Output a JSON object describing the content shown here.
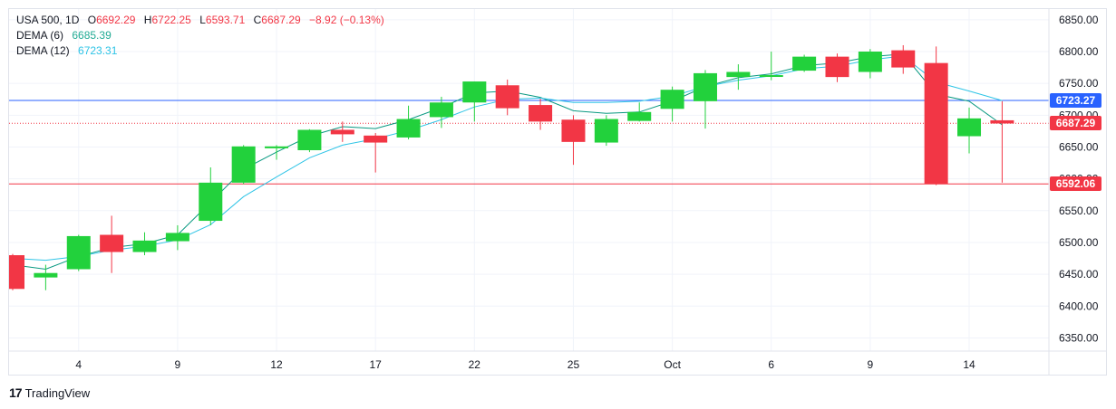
{
  "legend": {
    "symbol": "USA 500, 1D",
    "o_label": "O",
    "o_value": "6692.29",
    "h_label": "H",
    "h_value": "6722.25",
    "l_label": "L",
    "l_value": "6593.71",
    "c_label": "C",
    "c_value": "6687.29",
    "change": "−8.92 (−0.13%)",
    "dema6_label": "DEMA (6)",
    "dema6_value": "6685.39",
    "dema12_label": "DEMA (12)",
    "dema12_value": "6723.31"
  },
  "price_tags": {
    "dema12": "6723.27",
    "close": "6687.29",
    "low": "6592.06"
  },
  "brand": {
    "logo": "17",
    "name": "TradingView"
  },
  "colors": {
    "up": "#22d13c",
    "down": "#f23645",
    "dema6": "#089981",
    "dema12": "#2ec4e6",
    "dema_line": "#2962ff",
    "low_line": "#f23645",
    "grid": "#f0f3fa"
  },
  "chart_data": {
    "type": "candlestick",
    "title": "USA 500, 1D",
    "xlabel": "",
    "ylabel": "",
    "ylim": [
      6300,
      6860
    ],
    "y_ticks": [
      6350,
      6400,
      6450,
      6500,
      6550,
      6600,
      6650,
      6700,
      6750,
      6800,
      6850
    ],
    "x_ticks": [
      {
        "idx": 2,
        "label": "4"
      },
      {
        "idx": 5,
        "label": "9"
      },
      {
        "idx": 8,
        "label": "12"
      },
      {
        "idx": 11,
        "label": "17"
      },
      {
        "idx": 14,
        "label": "22"
      },
      {
        "idx": 17,
        "label": "25"
      },
      {
        "idx": 20,
        "label": "Oct"
      },
      {
        "idx": 23,
        "label": "6"
      },
      {
        "idx": 26,
        "label": "9"
      },
      {
        "idx": 29,
        "label": "14"
      }
    ],
    "candles": [
      {
        "o": 6480,
        "h": 6482,
        "l": 6425,
        "c": 6427
      },
      {
        "o": 6445,
        "h": 6465,
        "l": 6425,
        "c": 6452
      },
      {
        "o": 6458,
        "h": 6512,
        "l": 6455,
        "c": 6510
      },
      {
        "o": 6512,
        "h": 6542,
        "l": 6452,
        "c": 6485
      },
      {
        "o": 6485,
        "h": 6516,
        "l": 6480,
        "c": 6503
      },
      {
        "o": 6502,
        "h": 6527,
        "l": 6488,
        "c": 6515
      },
      {
        "o": 6534,
        "h": 6618,
        "l": 6527,
        "c": 6594
      },
      {
        "o": 6594,
        "h": 6653,
        "l": 6592,
        "c": 6651
      },
      {
        "o": 6648,
        "h": 6653,
        "l": 6630,
        "c": 6651
      },
      {
        "o": 6645,
        "h": 6678,
        "l": 6642,
        "c": 6677
      },
      {
        "o": 6677,
        "h": 6690,
        "l": 6658,
        "c": 6670
      },
      {
        "o": 6668,
        "h": 6672,
        "l": 6610,
        "c": 6657
      },
      {
        "o": 6665,
        "h": 6715,
        "l": 6662,
        "c": 6694
      },
      {
        "o": 6697,
        "h": 6729,
        "l": 6680,
        "c": 6720
      },
      {
        "o": 6720,
        "h": 6753,
        "l": 6690,
        "c": 6753
      },
      {
        "o": 6747,
        "h": 6756,
        "l": 6700,
        "c": 6711
      },
      {
        "o": 6716,
        "h": 6726,
        "l": 6677,
        "c": 6690
      },
      {
        "o": 6693,
        "h": 6700,
        "l": 6622,
        "c": 6658
      },
      {
        "o": 6657,
        "h": 6700,
        "l": 6652,
        "c": 6694
      },
      {
        "o": 6691,
        "h": 6720,
        "l": 6690,
        "c": 6705
      },
      {
        "o": 6710,
        "h": 6745,
        "l": 6690,
        "c": 6740
      },
      {
        "o": 6722,
        "h": 6771,
        "l": 6679,
        "c": 6766
      },
      {
        "o": 6760,
        "h": 6780,
        "l": 6740,
        "c": 6768
      },
      {
        "o": 6762,
        "h": 6800,
        "l": 6755,
        "c": 6763
      },
      {
        "o": 6770,
        "h": 6795,
        "l": 6768,
        "c": 6792
      },
      {
        "o": 6792,
        "h": 6797,
        "l": 6752,
        "c": 6760
      },
      {
        "o": 6768,
        "h": 6804,
        "l": 6758,
        "c": 6800
      },
      {
        "o": 6802,
        "h": 6810,
        "l": 6765,
        "c": 6775
      },
      {
        "o": 6782,
        "h": 6808,
        "l": 6590,
        "c": 6592
      },
      {
        "o": 6667,
        "h": 6712,
        "l": 6640,
        "c": 6695
      },
      {
        "o": 6692,
        "h": 6722,
        "l": 6594,
        "c": 6687
      }
    ],
    "series": [
      {
        "name": "DEMA (6)",
        "values": [
          6465,
          6458,
          6478,
          6492,
          6498,
          6512,
          6563,
          6615,
          6642,
          6667,
          6682,
          6679,
          6693,
          6712,
          6735,
          6738,
          6728,
          6707,
          6703,
          6705,
          6722,
          6745,
          6759,
          6765,
          6778,
          6782,
          6792,
          6796,
          6733,
          6722,
          6685
        ]
      },
      {
        "name": "DEMA (12)",
        "values": [
          6475,
          6472,
          6478,
          6488,
          6494,
          6504,
          6528,
          6572,
          6603,
          6633,
          6653,
          6663,
          6676,
          6693,
          6713,
          6725,
          6727,
          6720,
          6720,
          6722,
          6730,
          6745,
          6755,
          6762,
          6773,
          6777,
          6787,
          6793,
          6752,
          6738,
          6723
        ]
      }
    ],
    "hlines": [
      {
        "name": "dema12-last",
        "value": 6723.27,
        "style": "solid"
      },
      {
        "name": "close-last",
        "value": 6687.29,
        "style": "dotted"
      },
      {
        "name": "low",
        "value": 6592.06,
        "style": "solid"
      }
    ]
  }
}
